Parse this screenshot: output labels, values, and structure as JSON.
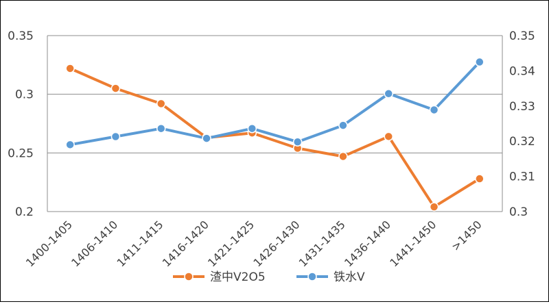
{
  "chart_data": {
    "type": "line",
    "title": "",
    "xlabel": "",
    "ylabel": "",
    "categories": [
      "1400-1405",
      "1406-1410",
      "1411-1415",
      "1416-1420",
      "1421-1425",
      "1426-1430",
      "1431-1435",
      "1436-1440",
      "1441-1450",
      ">1450"
    ],
    "y_left": {
      "ticks": [
        "0.2",
        "0.25",
        "0.3",
        "0.35"
      ],
      "ylim": [
        0.2,
        0.35
      ]
    },
    "y_right": {
      "ticks": [
        "0.3",
        "0.31",
        "0.32",
        "0.33",
        "0.34",
        "0.35"
      ],
      "ylim": [
        0.3,
        0.35
      ]
    },
    "grid": true,
    "legend_position": "bottom",
    "series": [
      {
        "name": "渣中V2O5",
        "axis": "left",
        "color": "#ED7D31",
        "values": [
          0.322,
          0.305,
          0.292,
          0.263,
          0.267,
          0.254,
          0.247,
          0.264,
          0.204,
          0.228
        ]
      },
      {
        "name": "铁水V",
        "axis": "right",
        "color": "#5B9BD5",
        "values": [
          0.319,
          0.3213,
          0.3236,
          0.3208,
          0.3236,
          0.3198,
          0.3245,
          0.3335,
          0.3289,
          0.3425
        ]
      }
    ]
  }
}
